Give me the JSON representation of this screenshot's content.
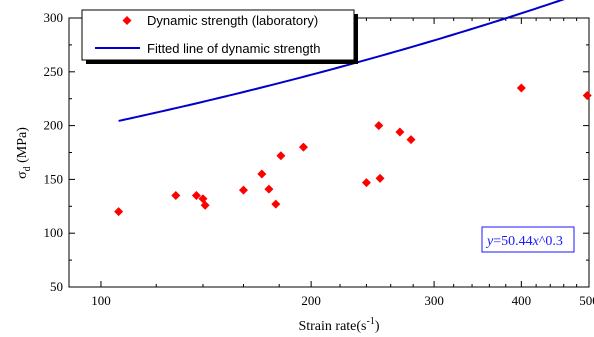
{
  "chart_data": {
    "type": "scatter",
    "xlabel_main": "Strain rate(s",
    "xlabel_exp": "-1",
    "xlabel_tail": ")",
    "ylabel_main": "σ",
    "ylabel_sub": "d",
    "ylabel_tail": " (MPa)",
    "x_scale": "log",
    "xlim": [
      90,
      500
    ],
    "ylim": [
      50,
      300
    ],
    "x_ticks": [
      100,
      200,
      300,
      400,
      500
    ],
    "x_tick_labels": [
      "100",
      "200",
      "300",
      "400",
      "500"
    ],
    "y_ticks": [
      50,
      100,
      150,
      200,
      250,
      300
    ],
    "y_tick_labels": [
      "50",
      "100",
      "150",
      "200",
      "250",
      "300"
    ],
    "grid": false,
    "legend_position": "top-left",
    "series": [
      {
        "name": "Dynamic strength (laboratory)",
        "kind": "scatter",
        "marker": "diamond",
        "color": "#ff0000",
        "points": [
          [
            106,
            120
          ],
          [
            128,
            135
          ],
          [
            137,
            135
          ],
          [
            140,
            132
          ],
          [
            141,
            126
          ],
          [
            160,
            140
          ],
          [
            170,
            155
          ],
          [
            174,
            141
          ],
          [
            178,
            127
          ],
          [
            181,
            172
          ],
          [
            195,
            180
          ],
          [
            240,
            147
          ],
          [
            250,
            200
          ],
          [
            251,
            151
          ],
          [
            268,
            194
          ],
          [
            278,
            187
          ],
          [
            400,
            235
          ],
          [
            497,
            228
          ]
        ]
      },
      {
        "name": "Fitted line of dynamic strength",
        "kind": "line",
        "color": "#0000cc",
        "formula": "y = 50.44 * x^0.3",
        "coef": 50.44,
        "exponent": 0.3,
        "x_range": [
          106,
          497
        ]
      }
    ],
    "annotation": {
      "prefix": "y",
      "body": "=50.44",
      "var": "x",
      "suffix": "^0.3"
    }
  }
}
